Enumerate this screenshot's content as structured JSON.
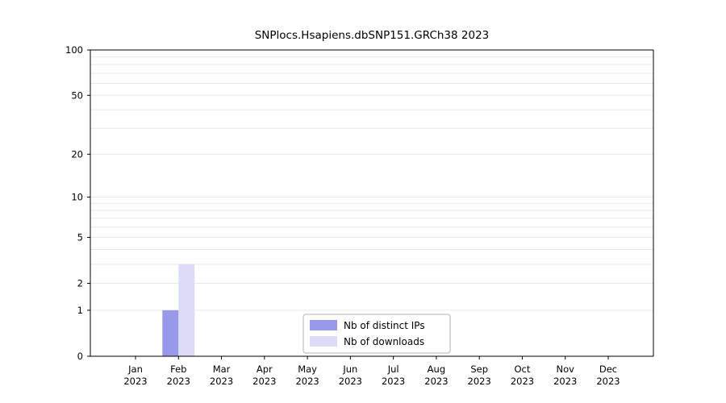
{
  "page": {
    "background": "#ffffff"
  },
  "chart_data": {
    "type": "bar",
    "title": "SNPlocs.Hsapiens.dbSNP151.GRCh38 2023",
    "categories": [
      "Jan",
      "Feb",
      "Mar",
      "Apr",
      "May",
      "Jun",
      "Jul",
      "Aug",
      "Sep",
      "Oct",
      "Nov",
      "Dec"
    ],
    "category_year": "2023",
    "series": [
      {
        "name": "Nb of distinct IPs",
        "color": "#9999ec",
        "values": [
          0,
          1,
          0,
          0,
          0,
          0,
          0,
          0,
          0,
          0,
          0,
          0
        ]
      },
      {
        "name": "Nb of downloads",
        "color": "#dcdcf8",
        "values": [
          0,
          3,
          0,
          0,
          0,
          0,
          0,
          0,
          0,
          0,
          0,
          0
        ]
      }
    ],
    "y_ticks": [
      0,
      1,
      2,
      5,
      10,
      20,
      50,
      100
    ],
    "y_scale": "log1p",
    "ylim": [
      0,
      100
    ],
    "grid_values": [
      1,
      2,
      3,
      4,
      5,
      6,
      7,
      8,
      9,
      10,
      20,
      30,
      40,
      50,
      60,
      70,
      80,
      90,
      100
    ],
    "grid_color": "#e9e9e9",
    "axis_color": "#000000",
    "legend": {
      "position": "bottom-center",
      "entries": [
        "Nb of distinct IPs",
        "Nb of downloads"
      ]
    },
    "xlabel": "",
    "ylabel": ""
  }
}
